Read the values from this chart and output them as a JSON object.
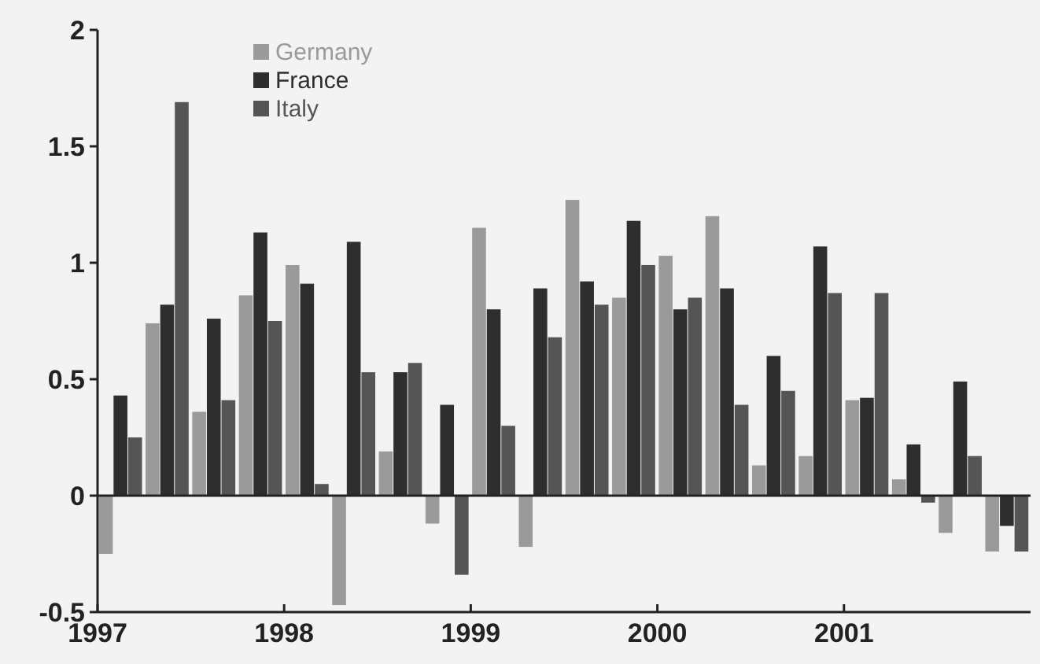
{
  "chart_data": {
    "type": "bar",
    "x": [
      1997.125,
      1997.375,
      1997.625,
      1997.875,
      1998.125,
      1998.375,
      1998.625,
      1998.875,
      1999.125,
      1999.375,
      1999.625,
      1999.875,
      2000.125,
      2000.375,
      2000.625,
      2000.875,
      2001.125,
      2001.375,
      2001.625,
      2001.875
    ],
    "series": [
      {
        "name": "Germany",
        "color": "#9a9a9a",
        "values": [
          -0.25,
          0.74,
          0.36,
          0.86,
          0.99,
          -0.47,
          0.19,
          -0.12,
          1.15,
          -0.22,
          1.27,
          0.85,
          1.03,
          1.2,
          0.13,
          0.17,
          0.41,
          0.07,
          -0.16,
          -0.24
        ]
      },
      {
        "name": "France",
        "color": "#2e2e2e",
        "values": [
          0.43,
          0.82,
          0.76,
          1.13,
          0.91,
          1.09,
          0.53,
          0.39,
          0.8,
          0.89,
          0.92,
          1.18,
          0.8,
          0.89,
          0.6,
          1.07,
          0.42,
          0.22,
          0.49,
          -0.13
        ]
      },
      {
        "name": "Italy",
        "color": "#555555",
        "values": [
          0.25,
          1.69,
          0.41,
          0.75,
          0.05,
          0.53,
          0.57,
          -0.34,
          0.3,
          0.68,
          0.82,
          0.99,
          0.85,
          0.39,
          0.45,
          0.87,
          0.87,
          -0.03,
          0.17,
          -0.24
        ]
      }
    ],
    "xlim": [
      1997,
      2002
    ],
    "xticks": [
      1997,
      1998,
      1999,
      2000,
      2001
    ],
    "ylim": [
      -0.5,
      2
    ],
    "yticks": [
      -0.5,
      0,
      0.5,
      1,
      1.5,
      2
    ],
    "legend": "top left",
    "ref_lines": [
      {
        "axis": "y",
        "value": 0,
        "color": "#222222"
      }
    ]
  }
}
